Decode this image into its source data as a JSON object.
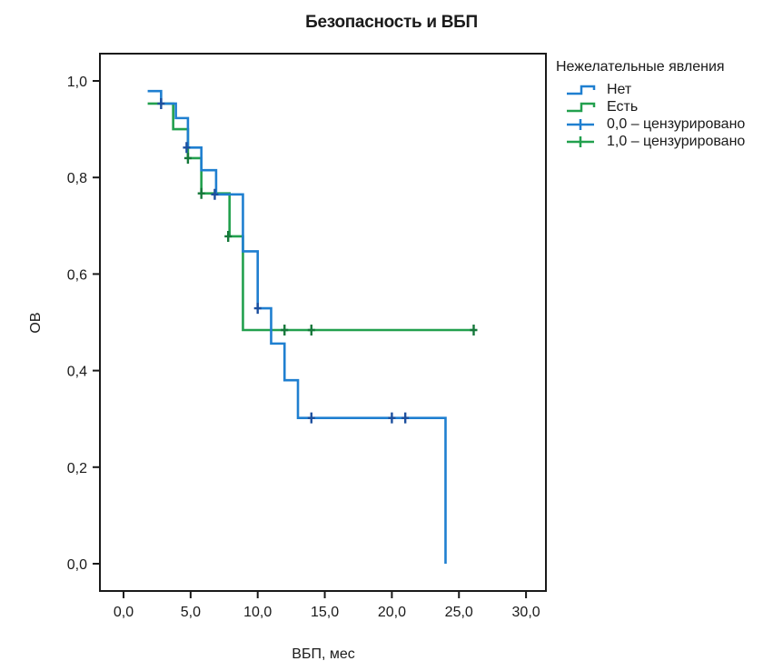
{
  "chart_data": {
    "type": "line",
    "subtype": "kaplan-meier step",
    "title": "Безопасность и ВБП",
    "xlabel": "ВБП, мес",
    "ylabel": "ОВ",
    "xlim": [
      -1.8,
      31.5
    ],
    "ylim": [
      -0.055,
      1.055
    ],
    "x_ticks": [
      0,
      5,
      10,
      15,
      20,
      25,
      30
    ],
    "x_tick_labels": [
      "0,0",
      "5,0",
      "10,0",
      "15,0",
      "20,0",
      "25,0",
      "30,0"
    ],
    "y_ticks": [
      0,
      0.2,
      0.4,
      0.6,
      0.8,
      1.0
    ],
    "y_tick_labels": [
      "0,0",
      "0,2",
      "0,4",
      "0,6",
      "0,8",
      "1,0"
    ],
    "grid": false,
    "legend": {
      "title": "Нежелательные явления",
      "placement": "right",
      "entries": [
        "Нет",
        "Есть",
        "0,0 – цензурировано",
        "1,0 – цензурировано"
      ]
    },
    "series": [
      {
        "name": "Нет",
        "color": "#1f7fd0",
        "censor_color": "#1c4f9e",
        "steps": [
          [
            1.8,
            0.979
          ],
          [
            2.8,
            0.953
          ],
          [
            3.9,
            0.923
          ],
          [
            4.8,
            0.862
          ],
          [
            5.8,
            0.815
          ],
          [
            6.9,
            0.765
          ],
          [
            8.9,
            0.647
          ],
          [
            10.0,
            0.529
          ],
          [
            11.0,
            0.456
          ],
          [
            12.0,
            0.38
          ],
          [
            13.0,
            0.302
          ],
          [
            24.0,
            0.0
          ]
        ],
        "censored": [
          [
            2.8,
            0.953
          ],
          [
            4.7,
            0.862
          ],
          [
            6.8,
            0.765
          ],
          [
            10.0,
            0.529
          ],
          [
            14.0,
            0.302
          ],
          [
            20.0,
            0.302
          ],
          [
            21.0,
            0.302
          ]
        ]
      },
      {
        "name": "Есть",
        "color": "#22a04e",
        "censor_color": "#15783a",
        "steps": [
          [
            1.8,
            0.953
          ],
          [
            3.7,
            0.9
          ],
          [
            4.8,
            0.84
          ],
          [
            5.8,
            0.767
          ],
          [
            7.9,
            0.678
          ],
          [
            8.9,
            0.484
          ],
          [
            26.1,
            0.484
          ]
        ],
        "censored": [
          [
            4.8,
            0.84
          ],
          [
            5.8,
            0.767
          ],
          [
            7.8,
            0.678
          ],
          [
            12.0,
            0.484
          ],
          [
            14.0,
            0.484
          ],
          [
            26.1,
            0.484
          ]
        ]
      }
    ]
  }
}
